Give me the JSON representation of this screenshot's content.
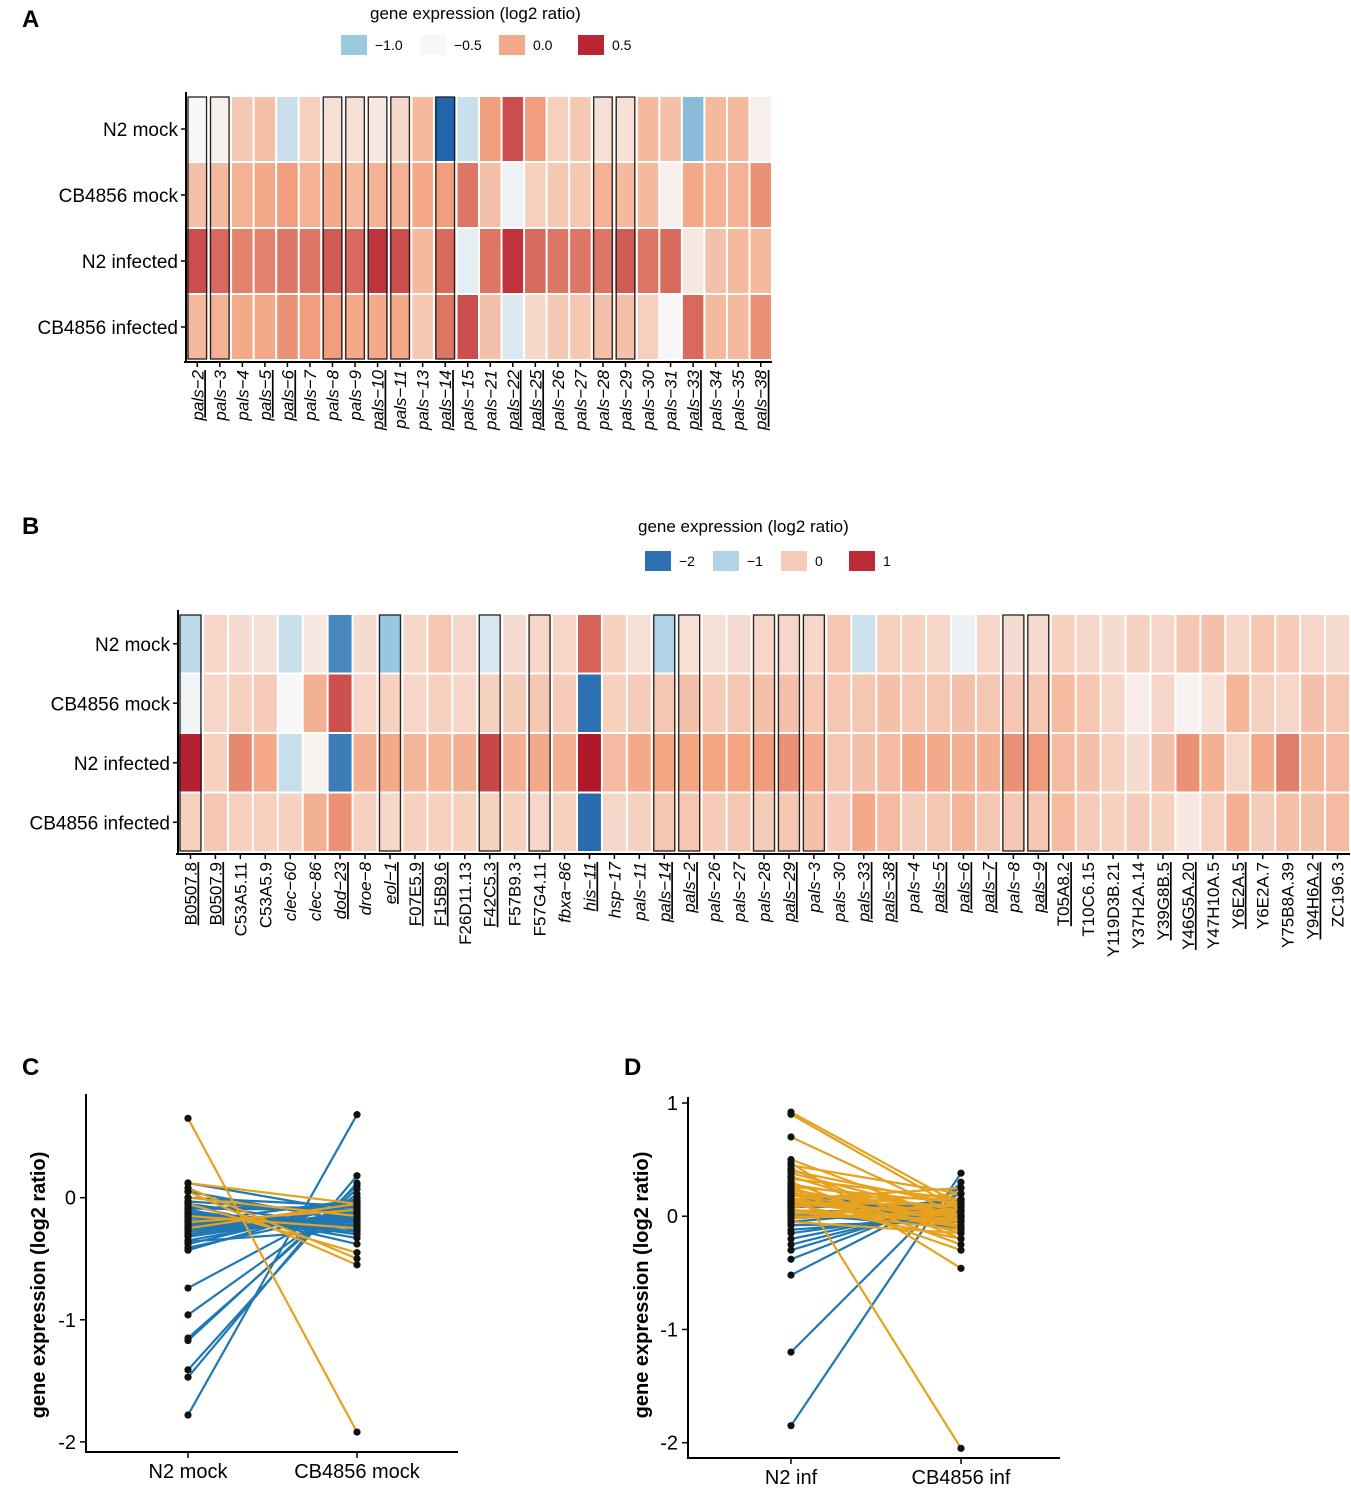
{
  "colors": {
    "line_blue": "#1f78b4",
    "line_orange": "#e6a11f",
    "point": "#111111",
    "box": "#222222"
  },
  "chart_data": [
    {
      "panel": "A",
      "type": "heatmap",
      "legend_title": "gene expression (log2 ratio)",
      "legend_labels": [
        "−1.0",
        "−0.5",
        "0.0",
        "0.5"
      ],
      "legend_values": [
        -1.0,
        -0.5,
        0.0,
        0.5
      ],
      "rows": [
        "N2 mock",
        "CB4856 mock",
        "N2 infected",
        "CB4856 infected"
      ],
      "columns": [
        "pals−2",
        "pals−3",
        "pals−4",
        "pals−5",
        "pals−6",
        "pals−7",
        "pals−8",
        "pals−9",
        "pals−10",
        "pals−11",
        "pals−13",
        "pals−14",
        "pals−15",
        "pals−21",
        "pals−22",
        "pals−25",
        "pals−26",
        "pals−27",
        "pals−28",
        "pals−29",
        "pals−30",
        "pals−31",
        "pals−33",
        "pals−34",
        "pals−35",
        "pals−38"
      ],
      "italic_columns": true,
      "underlined_columns": [
        0,
        3,
        4,
        8,
        11,
        14,
        15,
        22,
        25
      ],
      "boxed_columns": [
        0,
        1,
        6,
        7,
        8,
        9,
        11,
        18,
        19
      ],
      "values": [
        [
          -0.5,
          -0.45,
          -0.2,
          -0.15,
          -0.75,
          -0.25,
          -0.35,
          -0.35,
          -0.4,
          -0.3,
          -0.1,
          -1.6,
          -0.75,
          0.05,
          0.35,
          0.05,
          -0.25,
          -0.2,
          -0.35,
          -0.35,
          -0.1,
          -0.15,
          -1.1,
          -0.1,
          -0.1,
          -0.45
        ],
        [
          -0.15,
          -0.1,
          -0.05,
          0.0,
          0.05,
          -0.05,
          0.0,
          -0.1,
          -0.05,
          -0.05,
          0.0,
          0.05,
          0.2,
          -0.15,
          -0.55,
          -0.25,
          -0.2,
          -0.2,
          -0.05,
          -0.1,
          -0.1,
          -0.45,
          0.0,
          -0.05,
          -0.05,
          0.1
        ],
        [
          0.35,
          0.25,
          0.15,
          0.15,
          0.2,
          0.2,
          0.3,
          0.25,
          0.45,
          0.35,
          -0.1,
          0.25,
          -0.6,
          0.2,
          0.45,
          0.25,
          0.2,
          0.2,
          0.2,
          0.3,
          0.2,
          0.25,
          -0.4,
          -0.15,
          -0.1,
          -0.1
        ],
        [
          -0.1,
          -0.05,
          0.0,
          0.0,
          0.1,
          0.05,
          0.05,
          0.0,
          0.0,
          0.0,
          -0.2,
          0.2,
          0.35,
          -0.15,
          -0.65,
          -0.3,
          -0.2,
          -0.2,
          -0.15,
          -0.15,
          -0.25,
          -0.5,
          0.25,
          -0.1,
          -0.1,
          0.1
        ]
      ]
    },
    {
      "panel": "B",
      "type": "heatmap",
      "legend_title": "gene expression (log2 ratio)",
      "legend_labels": [
        "−2",
        "−1",
        "0",
        "1"
      ],
      "legend_values": [
        -2,
        -1,
        0,
        1
      ],
      "rows": [
        "N2 mock",
        "CB4856 mock",
        "N2 infected",
        "CB4856 infected"
      ],
      "columns": [
        "B0507.8",
        "B0507.9",
        "C53A5.11",
        "C53A5.9",
        "clec−60",
        "clec−86",
        "dod−23",
        "droe−8",
        "eol−1",
        "F07E5.9",
        "F15B9.6",
        "F26D11.13",
        "F42C5.3",
        "F57B9.3",
        "F57G4.11",
        "fbxa−86",
        "his−11",
        "hsp−17",
        "pals−11",
        "pals−14",
        "pals−2",
        "pals−26",
        "pals−27",
        "pals−28",
        "pals−29",
        "pals−3",
        "pals−30",
        "pals−33",
        "pals−38",
        "pals−4",
        "pals−5",
        "pals−6",
        "pals−7",
        "pals−8",
        "pals−9",
        "T05A8.2",
        "T10C6.15",
        "Y119D3B.21",
        "Y37H2A.14",
        "Y39G8B.5",
        "Y46G5A.20",
        "Y47H10A.5",
        "Y6E2A.5",
        "Y6E2A.7",
        "Y75B8A.39",
        "Y94H6A.2",
        "ZC196.3"
      ],
      "italic_columns": [
        4,
        5,
        6,
        7,
        8,
        15,
        16,
        17,
        18,
        19,
        20,
        21,
        22,
        23,
        24,
        25,
        26,
        27,
        28,
        29,
        30,
        31,
        32,
        33,
        34
      ],
      "underlined_columns": [
        0,
        1,
        6,
        8,
        9,
        10,
        12,
        16,
        19,
        20,
        24,
        27,
        28,
        30,
        31,
        32,
        34,
        35,
        39,
        40,
        42,
        45
      ],
      "boxed_columns": [
        0,
        8,
        12,
        14,
        19,
        20,
        23,
        24,
        25,
        33,
        34
      ],
      "values": [
        [
          -0.9,
          -0.1,
          -0.15,
          -0.2,
          -0.8,
          -0.25,
          -1.8,
          -0.15,
          -1.2,
          -0.1,
          0.05,
          -0.1,
          -0.65,
          -0.15,
          -0.1,
          -0.1,
          0.7,
          -0.05,
          -0.2,
          -1.0,
          -0.2,
          -0.2,
          -0.15,
          -0.1,
          -0.1,
          -0.1,
          0.05,
          -0.75,
          -0.05,
          -0.05,
          -0.1,
          -0.5,
          -0.1,
          -0.15,
          -0.15,
          -0.05,
          -0.1,
          -0.15,
          -0.05,
          -0.1,
          0.05,
          0.1,
          -0.1,
          0.05,
          0.0,
          -0.1,
          -0.15
        ],
        [
          -0.45,
          -0.1,
          -0.05,
          0.0,
          -0.4,
          0.25,
          0.8,
          -0.1,
          -0.05,
          -0.1,
          -0.05,
          -0.1,
          -0.05,
          0.0,
          0.05,
          0.0,
          -2.0,
          -0.05,
          0.0,
          0.05,
          0.1,
          0.0,
          0.05,
          0.1,
          0.1,
          0.05,
          0.05,
          0.05,
          0.1,
          0.05,
          0.05,
          0.1,
          0.05,
          0.05,
          0.05,
          0.15,
          0.05,
          -0.1,
          -0.3,
          -0.1,
          -0.35,
          -0.2,
          0.2,
          -0.05,
          -0.1,
          0.1,
          0.05
        ],
        [
          1.05,
          -0.05,
          0.5,
          0.3,
          -0.8,
          -0.35,
          -1.9,
          0.25,
          0.3,
          0.2,
          0.2,
          0.25,
          0.85,
          0.25,
          0.3,
          0.25,
          1.1,
          0.15,
          0.3,
          0.35,
          0.35,
          0.35,
          0.35,
          0.4,
          0.45,
          0.3,
          0.05,
          0.1,
          0.15,
          0.3,
          0.3,
          0.25,
          0.25,
          0.45,
          0.4,
          0.15,
          0.1,
          -0.05,
          -0.15,
          0.1,
          0.45,
          0.25,
          -0.1,
          0.3,
          0.55,
          0.2,
          0.15
        ],
        [
          -0.05,
          0.05,
          -0.05,
          -0.05,
          -0.05,
          0.25,
          0.45,
          -0.05,
          -0.1,
          -0.05,
          -0.05,
          -0.05,
          -0.05,
          -0.05,
          -0.1,
          -0.05,
          -2.05,
          -0.1,
          -0.05,
          0.05,
          0.05,
          0.0,
          0.05,
          0.0,
          0.05,
          0.1,
          0.0,
          0.3,
          0.15,
          0.0,
          0.05,
          0.2,
          0.05,
          0.05,
          0.05,
          0.15,
          0.0,
          -0.05,
          0.0,
          -0.05,
          -0.25,
          -0.05,
          0.25,
          0.0,
          0.1,
          0.1,
          0.15
        ]
      ]
    },
    {
      "panel": "C",
      "type": "line",
      "ylabel": "gene expression (log2 ratio)",
      "categories": [
        "N2 mock",
        "CB4856 mock"
      ],
      "y_ticks": [
        -2,
        -1,
        0
      ],
      "ylim": [
        -2.05,
        0.8
      ],
      "series": [
        {
          "name": "blue",
          "color_key": "line_blue",
          "pairs": [
            [
              -1.78,
              0.68
            ],
            [
              -1.47,
              0.18
            ],
            [
              -1.41,
              0.12
            ],
            [
              -1.17,
              0.1
            ],
            [
              -1.15,
              0.07
            ],
            [
              -0.96,
              0.03
            ],
            [
              -0.74,
              0.0
            ],
            [
              -0.43,
              -0.03
            ],
            [
              -0.38,
              -0.05
            ],
            [
              -0.35,
              -0.1
            ],
            [
              -0.32,
              -0.12
            ],
            [
              -0.3,
              -0.14
            ],
            [
              -0.28,
              -0.16
            ],
            [
              -0.26,
              -0.18
            ],
            [
              -0.25,
              -0.2
            ],
            [
              -0.23,
              -0.22
            ],
            [
              -0.22,
              -0.15
            ],
            [
              -0.2,
              -0.25
            ],
            [
              -0.19,
              -0.2
            ],
            [
              -0.17,
              -0.17
            ],
            [
              -0.16,
              -0.23
            ],
            [
              -0.14,
              -0.19
            ],
            [
              -0.13,
              -0.28
            ],
            [
              -0.12,
              -0.3
            ],
            [
              -0.1,
              -0.33
            ],
            [
              -0.09,
              -0.1
            ],
            [
              -0.08,
              -0.08
            ],
            [
              -0.06,
              -0.38
            ],
            [
              -0.05,
              -0.24
            ],
            [
              -0.03,
              -0.13
            ],
            [
              0.0,
              -0.07
            ],
            [
              0.05,
              -0.2
            ],
            [
              0.12,
              -0.12
            ],
            [
              -0.2,
              -0.02
            ],
            [
              -0.31,
              -0.06
            ],
            [
              -0.36,
              -0.26
            ],
            [
              -0.41,
              -0.11
            ]
          ]
        },
        {
          "name": "orange",
          "color_key": "line_orange",
          "pairs": [
            [
              0.65,
              -1.92
            ],
            [
              0.12,
              -0.05
            ],
            [
              0.08,
              -0.5
            ],
            [
              0.05,
              -0.55
            ],
            [
              -0.05,
              -0.45
            ],
            [
              -0.15,
              -0.25
            ],
            [
              -0.2,
              -0.1
            ],
            [
              0.0,
              -0.15
            ],
            [
              -0.25,
              -0.05
            ]
          ]
        }
      ]
    },
    {
      "panel": "D",
      "type": "line",
      "ylabel": "gene expression (log2 ratio)",
      "categories": [
        "N2 inf",
        "CB4856 inf"
      ],
      "y_ticks": [
        -2,
        -1,
        0,
        1
      ],
      "ylim": [
        -2.1,
        1.0
      ],
      "series": [
        {
          "name": "blue",
          "color_key": "line_blue",
          "pairs": [
            [
              -1.85,
              0.38
            ],
            [
              -1.2,
              0.3
            ],
            [
              -0.52,
              0.25
            ],
            [
              -0.38,
              0.2
            ],
            [
              -0.3,
              0.15
            ],
            [
              -0.25,
              0.12
            ],
            [
              -0.2,
              0.1
            ],
            [
              -0.15,
              0.05
            ],
            [
              -0.12,
              0.0
            ],
            [
              -0.08,
              -0.05
            ],
            [
              -0.05,
              0.08
            ],
            [
              0.0,
              0.15
            ],
            [
              0.02,
              -0.1
            ],
            [
              0.05,
              0.03
            ],
            [
              0.08,
              0.1
            ],
            [
              0.12,
              -0.02
            ],
            [
              0.15,
              0.05
            ],
            [
              0.2,
              0.0
            ]
          ]
        },
        {
          "name": "orange",
          "color_key": "line_orange",
          "pairs": [
            [
              0.92,
              0.1
            ],
            [
              0.9,
              0.05
            ],
            [
              0.7,
              0.0
            ],
            [
              0.5,
              -0.05
            ],
            [
              0.47,
              -0.46
            ],
            [
              0.45,
              0.2
            ],
            [
              0.42,
              -0.2
            ],
            [
              0.4,
              0.1
            ],
            [
              0.38,
              0.0
            ],
            [
              0.35,
              -0.1
            ],
            [
              0.33,
              0.15
            ],
            [
              0.3,
              -0.25
            ],
            [
              0.28,
              0.05
            ],
            [
              0.26,
              0.12
            ],
            [
              0.25,
              -0.15
            ],
            [
              0.23,
              0.0
            ],
            [
              0.22,
              -0.3
            ],
            [
              0.2,
              0.08
            ],
            [
              0.19,
              -0.05
            ],
            [
              0.18,
              0.15
            ],
            [
              0.16,
              -0.1
            ],
            [
              0.15,
              0.25
            ],
            [
              0.14,
              0.0
            ],
            [
              0.13,
              -0.08
            ],
            [
              0.12,
              0.1
            ],
            [
              0.11,
              -0.2
            ],
            [
              0.1,
              0.05
            ],
            [
              0.08,
              0.2
            ],
            [
              0.06,
              -0.12
            ],
            [
              0.05,
              0.0
            ],
            [
              0.03,
              -0.05
            ],
            [
              0.02,
              0.1
            ],
            [
              0.0,
              -0.02
            ],
            [
              -0.02,
              0.05
            ],
            [
              -0.05,
              -0.15
            ],
            [
              0.35,
              -2.05
            ]
          ]
        }
      ]
    }
  ]
}
